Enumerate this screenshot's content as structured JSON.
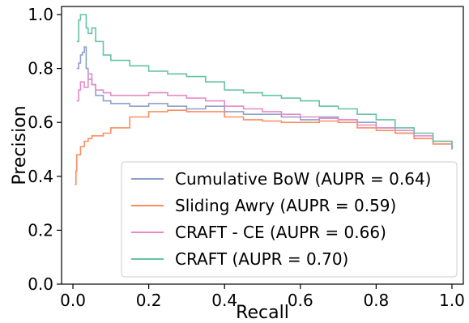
{
  "chart_data": {
    "type": "line",
    "title": "",
    "xlabel": "Recall",
    "ylabel": "Precision",
    "xlim": [
      -0.03,
      1.03
    ],
    "ylim": [
      0.0,
      1.03
    ],
    "xticks": [
      "0.0",
      "0.2",
      "0.4",
      "0.6",
      "0.8",
      "1.0"
    ],
    "yticks": [
      "0.0",
      "0.2",
      "0.4",
      "0.6",
      "0.8",
      "1.0"
    ],
    "grid": false,
    "legend_position": "lower-right",
    "series": [
      {
        "name": "Cumulative BoW (AUPR = 0.64)",
        "color": "#8da0cb",
        "points": [
          [
            0.01,
            0.8
          ],
          [
            0.015,
            0.82
          ],
          [
            0.02,
            0.85
          ],
          [
            0.025,
            0.86
          ],
          [
            0.03,
            0.88
          ],
          [
            0.035,
            0.8
          ],
          [
            0.04,
            0.76
          ],
          [
            0.05,
            0.74
          ],
          [
            0.06,
            0.7
          ],
          [
            0.08,
            0.68
          ],
          [
            0.1,
            0.67
          ],
          [
            0.15,
            0.66
          ],
          [
            0.2,
            0.67
          ],
          [
            0.25,
            0.66
          ],
          [
            0.3,
            0.65
          ],
          [
            0.35,
            0.66
          ],
          [
            0.4,
            0.64
          ],
          [
            0.45,
            0.63
          ],
          [
            0.5,
            0.63
          ],
          [
            0.55,
            0.62
          ],
          [
            0.6,
            0.61
          ],
          [
            0.65,
            0.62
          ],
          [
            0.7,
            0.61
          ],
          [
            0.75,
            0.6
          ],
          [
            0.8,
            0.58
          ],
          [
            0.85,
            0.56
          ],
          [
            0.9,
            0.54
          ],
          [
            0.95,
            0.52
          ],
          [
            1.0,
            0.5
          ]
        ]
      },
      {
        "name": "Sliding Awry (AUPR = 0.59)",
        "color": "#fc8d62",
        "points": [
          [
            0.005,
            0.37
          ],
          [
            0.008,
            0.42
          ],
          [
            0.01,
            0.48
          ],
          [
            0.02,
            0.51
          ],
          [
            0.03,
            0.53
          ],
          [
            0.04,
            0.54
          ],
          [
            0.05,
            0.55
          ],
          [
            0.08,
            0.56
          ],
          [
            0.1,
            0.58
          ],
          [
            0.15,
            0.62
          ],
          [
            0.2,
            0.64
          ],
          [
            0.25,
            0.645
          ],
          [
            0.3,
            0.64
          ],
          [
            0.35,
            0.64
          ],
          [
            0.4,
            0.62
          ],
          [
            0.45,
            0.61
          ],
          [
            0.5,
            0.605
          ],
          [
            0.55,
            0.6
          ],
          [
            0.6,
            0.6
          ],
          [
            0.65,
            0.605
          ],
          [
            0.7,
            0.6
          ],
          [
            0.75,
            0.58
          ],
          [
            0.8,
            0.57
          ],
          [
            0.85,
            0.56
          ],
          [
            0.9,
            0.54
          ],
          [
            0.95,
            0.52
          ],
          [
            1.0,
            0.5
          ]
        ]
      },
      {
        "name": "CRAFT - CE (AUPR = 0.66)",
        "color": "#e78ac3",
        "points": [
          [
            0.01,
            0.68
          ],
          [
            0.015,
            0.72
          ],
          [
            0.02,
            0.75
          ],
          [
            0.03,
            0.73
          ],
          [
            0.04,
            0.78
          ],
          [
            0.05,
            0.74
          ],
          [
            0.06,
            0.72
          ],
          [
            0.08,
            0.71
          ],
          [
            0.1,
            0.7
          ],
          [
            0.15,
            0.7
          ],
          [
            0.2,
            0.71
          ],
          [
            0.25,
            0.7
          ],
          [
            0.3,
            0.69
          ],
          [
            0.35,
            0.68
          ],
          [
            0.4,
            0.66
          ],
          [
            0.45,
            0.65
          ],
          [
            0.5,
            0.64
          ],
          [
            0.55,
            0.63
          ],
          [
            0.6,
            0.62
          ],
          [
            0.65,
            0.615
          ],
          [
            0.7,
            0.61
          ],
          [
            0.75,
            0.59
          ],
          [
            0.8,
            0.58
          ],
          [
            0.85,
            0.57
          ],
          [
            0.9,
            0.55
          ],
          [
            0.95,
            0.53
          ],
          [
            1.0,
            0.5
          ]
        ]
      },
      {
        "name": "CRAFT (AUPR = 0.70)",
        "color": "#66c2a5",
        "points": [
          [
            0.01,
            0.9
          ],
          [
            0.015,
            0.98
          ],
          [
            0.02,
            1.0
          ],
          [
            0.03,
            1.0
          ],
          [
            0.035,
            0.95
          ],
          [
            0.04,
            0.93
          ],
          [
            0.05,
            0.95
          ],
          [
            0.06,
            0.9
          ],
          [
            0.08,
            0.85
          ],
          [
            0.1,
            0.83
          ],
          [
            0.15,
            0.81
          ],
          [
            0.2,
            0.79
          ],
          [
            0.25,
            0.78
          ],
          [
            0.3,
            0.77
          ],
          [
            0.35,
            0.75
          ],
          [
            0.4,
            0.72
          ],
          [
            0.45,
            0.71
          ],
          [
            0.5,
            0.7
          ],
          [
            0.55,
            0.69
          ],
          [
            0.6,
            0.68
          ],
          [
            0.65,
            0.66
          ],
          [
            0.7,
            0.65
          ],
          [
            0.75,
            0.63
          ],
          [
            0.8,
            0.61
          ],
          [
            0.85,
            0.58
          ],
          [
            0.9,
            0.56
          ],
          [
            0.95,
            0.53
          ],
          [
            1.0,
            0.5
          ]
        ]
      }
    ]
  }
}
